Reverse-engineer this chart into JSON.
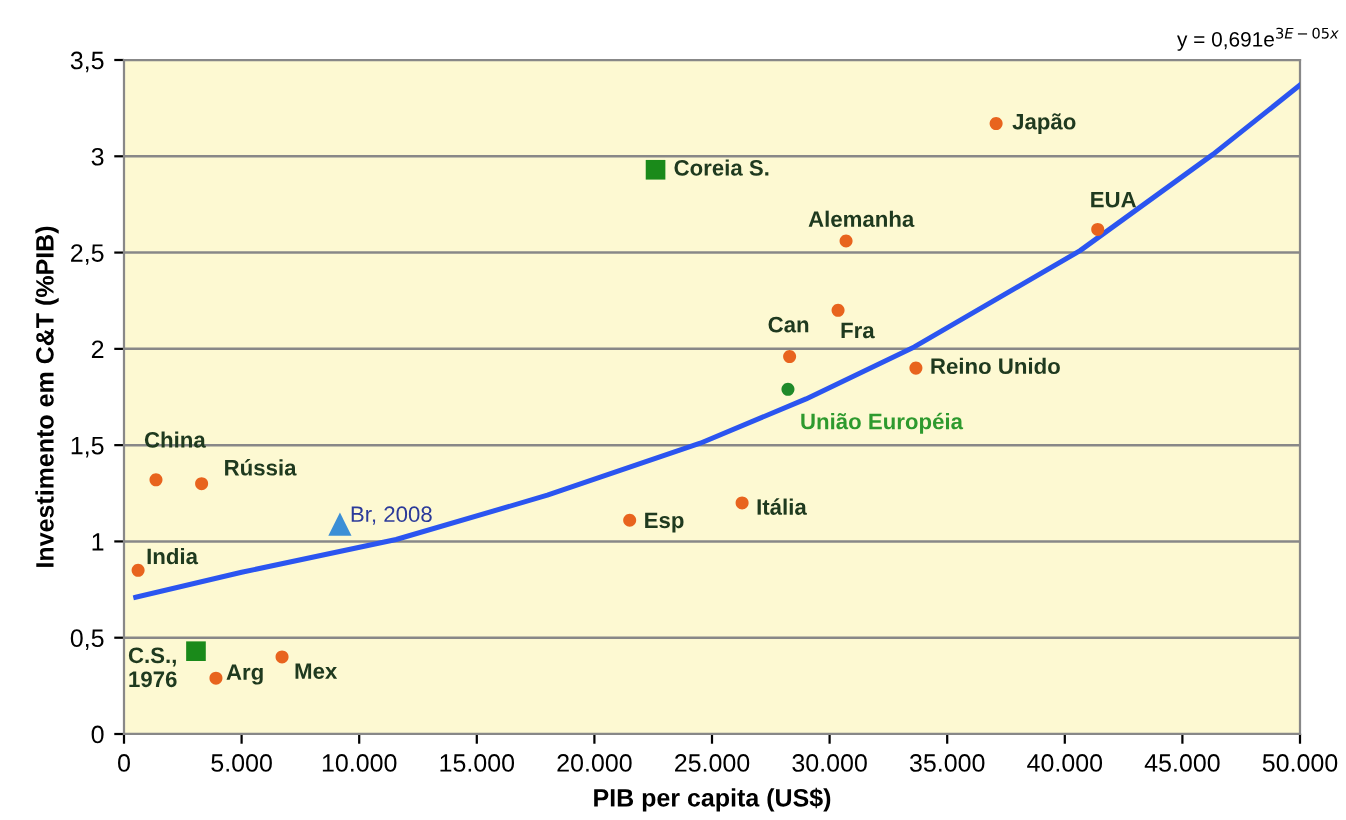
{
  "chart_data": {
    "type": "scatter",
    "xlabel": "PIB per capita (US$)",
    "ylabel": "Investimento em C&T (%PIB)",
    "xlim": [
      0,
      50000
    ],
    "ylim": [
      0,
      3.5
    ],
    "xticks": [
      0,
      {
        "value": 5000,
        "label": "5.000"
      },
      {
        "value": 10000,
        "label": "10.000"
      },
      {
        "value": 15000,
        "label": "15.000"
      },
      {
        "value": 20000,
        "label": "20.000"
      },
      {
        "value": 25000,
        "label": "25.000"
      },
      {
        "value": 30000,
        "label": "30.000"
      },
      {
        "value": 35000,
        "label": "35.000"
      },
      {
        "value": 40000,
        "label": "40.000"
      },
      {
        "value": 45000,
        "label": "45.000"
      },
      {
        "value": 50000,
        "label": "50.000"
      }
    ],
    "yticks": [
      0,
      {
        "value": 0.5,
        "label": "0,5"
      },
      1,
      {
        "value": 1.5,
        "label": "1,5"
      },
      2,
      {
        "value": 2.5,
        "label": "2,5"
      },
      3,
      {
        "value": 3.5,
        "label": "3,5"
      }
    ],
    "grid": "y",
    "series": [
      {
        "marker": "circle",
        "color": "#e8641e",
        "x": [
          1360,
          3300,
          600,
          3910,
          6720,
          21500,
          26280,
          37080,
          30700,
          41400,
          28300,
          30360,
          33670
        ],
        "values": [
          1.32,
          1.3,
          0.85,
          0.29,
          0.4,
          1.11,
          1.2,
          3.17,
          2.56,
          2.62,
          1.96,
          2.2,
          1.9
        ]
      },
      {
        "marker": "square",
        "color": "#1a8a1a",
        "x": [
          22600,
          3060
        ],
        "values": [
          2.93,
          0.43
        ]
      },
      {
        "marker": "circle",
        "color": "#1f8a2a",
        "x": [
          28230
        ],
        "values": [
          1.79
        ]
      },
      {
        "marker": "triangle",
        "color": "#3b8fd6",
        "x": [
          9180
        ],
        "values": [
          1.09
        ]
      },
      {
        "type": "line",
        "color": "#2b55f0",
        "x": [
          500,
          5000,
          11570,
          18000,
          24500,
          29000,
          33600,
          40650,
          46300,
          50000
        ],
        "values": [
          0.71,
          0.84,
          1.01,
          1.24,
          1.51,
          1.74,
          2.01,
          2.51,
          3.01,
          3.37
        ]
      }
    ],
    "annotations": [
      {
        "text": "China",
        "x": 1360,
        "y": 1.32
      },
      {
        "text": "Rússia",
        "x": 3300,
        "y": 1.3
      },
      {
        "text": "India",
        "x": 600,
        "y": 0.85
      },
      {
        "text": "Br, 2008",
        "x": 9180,
        "y": 1.09
      },
      {
        "text": "C.S.,\n1976",
        "x": 3060,
        "y": 0.43
      },
      {
        "text": "Arg",
        "x": 3910,
        "y": 0.29
      },
      {
        "text": "Mex",
        "x": 6720,
        "y": 0.4
      },
      {
        "text": "Esp",
        "x": 21500,
        "y": 1.11
      },
      {
        "text": "Itália",
        "x": 26280,
        "y": 1.2
      },
      {
        "text": "Coreia S.",
        "x": 22600,
        "y": 2.93
      },
      {
        "text": "Japão",
        "x": 37080,
        "y": 3.17
      },
      {
        "text": "Alemanha",
        "x": 30700,
        "y": 2.56
      },
      {
        "text": "EUA",
        "x": 41400,
        "y": 2.62
      },
      {
        "text": "Can",
        "x": 28300,
        "y": 1.96
      },
      {
        "text": "Fra",
        "x": 30360,
        "y": 2.2
      },
      {
        "text": "Reino Unido",
        "x": 33670,
        "y": 1.9
      },
      {
        "text": "União Européia",
        "x": 28230,
        "y": 1.79
      },
      "y = 0,691e$^{3E−05x}$"
    ]
  }
}
